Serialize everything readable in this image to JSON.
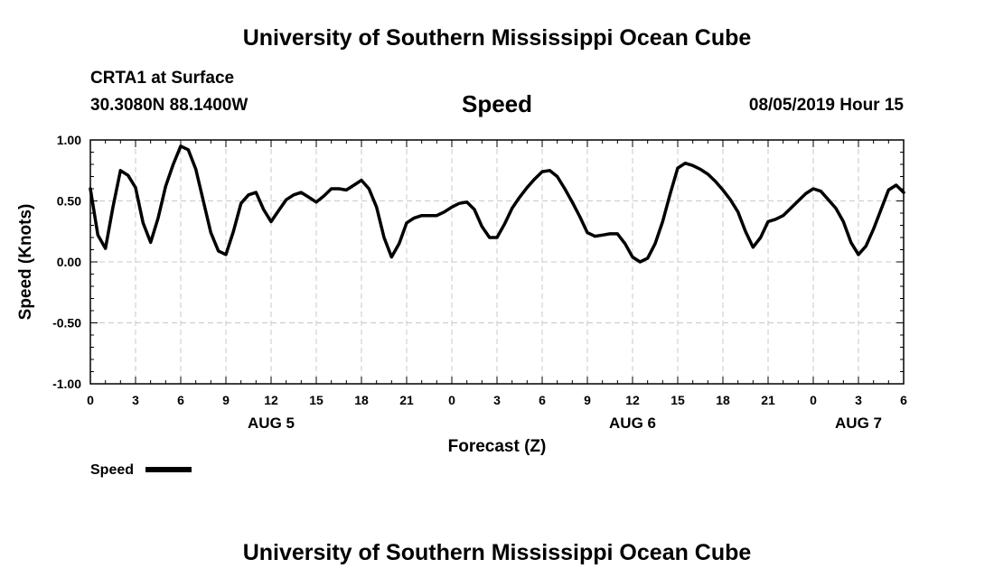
{
  "header": {
    "institution": "University of Southern Mississippi Ocean Cube",
    "station": "CRTA1 at Surface",
    "coordinates": "30.3080N 88.1400W",
    "datetime": "08/05/2019 Hour 15"
  },
  "footer": {
    "institution": "University of Southern Mississippi Ocean Cube"
  },
  "colors": {
    "line": "#000000",
    "grid": "#c8c8c8"
  },
  "chart_data": {
    "type": "line",
    "title": "Speed",
    "xlabel": "Forecast (Z)",
    "ylabel": "Speed (Knots)",
    "ylim": [
      -1.0,
      1.0
    ],
    "yticks": [
      -1.0,
      -0.5,
      0.0,
      0.5,
      1.0
    ],
    "ytick_labels": [
      "-1.00",
      "-0.50",
      "0.00",
      "0.50",
      "1.00"
    ],
    "xlim_hours": [
      0,
      54
    ],
    "xticks_hours": [
      0,
      3,
      6,
      9,
      12,
      15,
      18,
      21,
      24,
      27,
      30,
      33,
      36,
      39,
      42,
      45,
      48,
      51,
      54
    ],
    "xtick_labels": [
      "0",
      "3",
      "6",
      "9",
      "12",
      "15",
      "18",
      "21",
      "0",
      "3",
      "6",
      "9",
      "12",
      "15",
      "18",
      "21",
      "0",
      "3",
      "6"
    ],
    "day_labels": [
      {
        "hour": 12,
        "label": "AUG 5"
      },
      {
        "hour": 36,
        "label": "AUG 6"
      },
      {
        "hour": 51,
        "label": "AUG 7"
      }
    ],
    "grid": true,
    "legend": {
      "label": "Speed",
      "position": "bottom-left"
    },
    "series": [
      {
        "name": "Speed",
        "x": [
          0,
          0.5,
          1,
          1.5,
          2,
          2.5,
          3,
          3.5,
          4,
          4.5,
          5,
          5.5,
          6,
          6.5,
          7,
          7.5,
          8,
          8.5,
          9,
          9.5,
          10,
          10.5,
          11,
          11.5,
          12,
          12.5,
          13,
          13.5,
          14,
          14.5,
          15,
          15.5,
          16,
          16.5,
          17,
          17.5,
          18,
          18.5,
          19,
          19.5,
          20,
          20.5,
          21,
          21.5,
          22,
          22.5,
          23,
          23.5,
          24,
          24.5,
          25,
          25.5,
          26,
          26.5,
          27,
          27.5,
          28,
          28.5,
          29,
          29.5,
          30,
          30.5,
          31,
          31.5,
          32,
          32.5,
          33,
          33.5,
          34,
          34.5,
          35,
          35.5,
          36,
          36.5,
          37,
          37.5,
          38,
          38.5,
          39,
          39.5,
          40,
          40.5,
          41,
          41.5,
          42,
          42.5,
          43,
          43.5,
          44,
          44.5,
          45,
          45.5,
          46,
          46.5,
          47,
          47.5,
          48,
          48.5,
          49,
          49.5,
          50,
          50.5,
          51,
          51.5,
          52,
          52.5,
          53,
          53.5,
          54
        ],
        "values": [
          0.6,
          0.22,
          0.11,
          0.45,
          0.75,
          0.71,
          0.61,
          0.32,
          0.16,
          0.36,
          0.62,
          0.8,
          0.95,
          0.92,
          0.76,
          0.5,
          0.24,
          0.09,
          0.06,
          0.25,
          0.48,
          0.55,
          0.57,
          0.43,
          0.33,
          0.42,
          0.51,
          0.55,
          0.57,
          0.53,
          0.49,
          0.54,
          0.6,
          0.6,
          0.59,
          0.63,
          0.67,
          0.6,
          0.45,
          0.2,
          0.04,
          0.15,
          0.32,
          0.36,
          0.38,
          0.38,
          0.38,
          0.41,
          0.45,
          0.48,
          0.49,
          0.43,
          0.29,
          0.2,
          0.2,
          0.31,
          0.44,
          0.53,
          0.61,
          0.68,
          0.74,
          0.75,
          0.7,
          0.6,
          0.49,
          0.37,
          0.24,
          0.21,
          0.22,
          0.23,
          0.23,
          0.15,
          0.04,
          0.0,
          0.03,
          0.15,
          0.33,
          0.56,
          0.77,
          0.81,
          0.79,
          0.76,
          0.72,
          0.66,
          0.59,
          0.51,
          0.41,
          0.25,
          0.12,
          0.2,
          0.33,
          0.35,
          0.38,
          0.44,
          0.5,
          0.56,
          0.6,
          0.58,
          0.51,
          0.44,
          0.33,
          0.16,
          0.06,
          0.13,
          0.27,
          0.43,
          0.59,
          0.63,
          0.57
        ]
      }
    ]
  }
}
